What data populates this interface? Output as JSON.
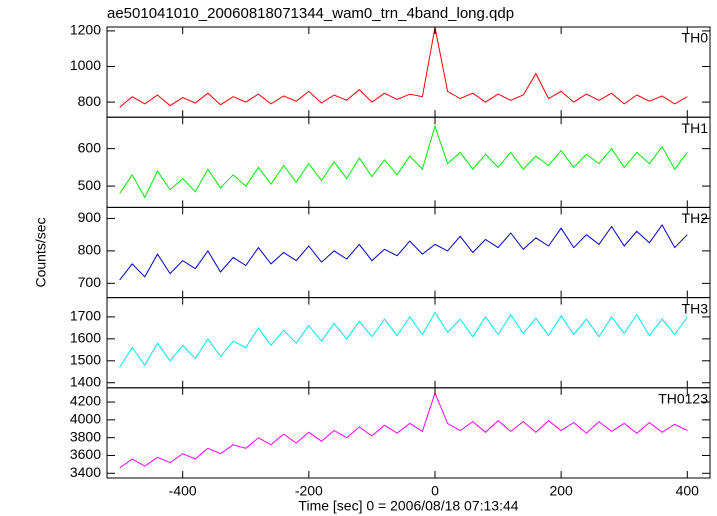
{
  "chart_data": [
    {
      "type": "line",
      "title": "ae501041010_20060818071344_wam0_trn_4band_long.qdp",
      "x": [
        -500,
        -480,
        -460,
        -440,
        -420,
        -400,
        -380,
        -360,
        -340,
        -320,
        -300,
        -280,
        -260,
        -240,
        -220,
        -200,
        -180,
        -160,
        -140,
        -120,
        -100,
        -80,
        -60,
        -40,
        -20,
        0,
        20,
        40,
        60,
        80,
        100,
        120,
        140,
        160,
        180,
        200,
        220,
        240,
        260,
        280,
        300,
        320,
        340,
        360,
        380,
        400
      ],
      "series": [
        {
          "name": "TH0",
          "color": "#ff0000",
          "values": [
            770,
            830,
            790,
            840,
            780,
            825,
            795,
            850,
            785,
            830,
            800,
            845,
            790,
            835,
            805,
            860,
            795,
            840,
            810,
            870,
            800,
            850,
            815,
            845,
            830,
            1220,
            860,
            820,
            850,
            800,
            845,
            810,
            840,
            960,
            820,
            860,
            800,
            845,
            810,
            850,
            790,
            840,
            805,
            835,
            790,
            830
          ]
        }
      ],
      "xlim": [
        -520,
        436
      ],
      "xticks": [
        -400,
        -200,
        0,
        200,
        400
      ],
      "ylim": [
        715,
        1222
      ],
      "yticks": [
        800,
        1000,
        1200
      ]
    },
    {
      "type": "line",
      "x": [
        -500,
        -480,
        -460,
        -440,
        -420,
        -400,
        -380,
        -360,
        -340,
        -320,
        -300,
        -280,
        -260,
        -240,
        -220,
        -200,
        -180,
        -160,
        -140,
        -120,
        -100,
        -80,
        -60,
        -40,
        -20,
        0,
        20,
        40,
        60,
        80,
        100,
        120,
        140,
        160,
        180,
        200,
        220,
        240,
        260,
        280,
        300,
        320,
        340,
        360,
        380,
        400
      ],
      "series": [
        {
          "name": "TH1",
          "color": "#00ee00",
          "values": [
            480,
            530,
            470,
            540,
            490,
            520,
            485,
            545,
            495,
            530,
            500,
            550,
            505,
            555,
            510,
            560,
            515,
            565,
            520,
            575,
            525,
            570,
            530,
            580,
            545,
            660,
            560,
            590,
            545,
            585,
            550,
            590,
            545,
            580,
            555,
            595,
            550,
            585,
            560,
            600,
            550,
            590,
            560,
            605,
            545,
            590
          ]
        }
      ],
      "xlim": [
        -520,
        436
      ],
      "xticks": [
        -400,
        -200,
        0,
        200,
        400
      ],
      "ylim": [
        443,
        684
      ],
      "yticks": [
        500,
        600
      ]
    },
    {
      "type": "line",
      "y_label": "Counts/sec",
      "x": [
        -500,
        -480,
        -460,
        -440,
        -420,
        -400,
        -380,
        -360,
        -340,
        -320,
        -300,
        -280,
        -260,
        -240,
        -220,
        -200,
        -180,
        -160,
        -140,
        -120,
        -100,
        -80,
        -60,
        -40,
        -20,
        0,
        20,
        40,
        60,
        80,
        100,
        120,
        140,
        160,
        180,
        200,
        220,
        240,
        260,
        280,
        300,
        320,
        340,
        360,
        380,
        400
      ],
      "series": [
        {
          "name": "TH2",
          "color": "#0000cc",
          "values": [
            710,
            760,
            720,
            790,
            730,
            770,
            745,
            800,
            735,
            780,
            755,
            810,
            760,
            795,
            770,
            815,
            765,
            800,
            775,
            820,
            770,
            805,
            785,
            830,
            790,
            820,
            800,
            845,
            795,
            835,
            810,
            855,
            805,
            840,
            815,
            870,
            810,
            850,
            820,
            875,
            815,
            860,
            825,
            880,
            810,
            850
          ]
        }
      ],
      "xlim": [
        -520,
        436
      ],
      "xticks": [
        -400,
        -200,
        0,
        200,
        400
      ],
      "ylim": [
        656,
        934
      ],
      "yticks": [
        700,
        800,
        900
      ]
    },
    {
      "type": "line",
      "x": [
        -500,
        -480,
        -460,
        -440,
        -420,
        -400,
        -380,
        -360,
        -340,
        -320,
        -300,
        -280,
        -260,
        -240,
        -220,
        -200,
        -180,
        -160,
        -140,
        -120,
        -100,
        -80,
        -60,
        -40,
        -20,
        0,
        20,
        40,
        60,
        80,
        100,
        120,
        140,
        160,
        180,
        200,
        220,
        240,
        260,
        280,
        300,
        320,
        340,
        360,
        380,
        400
      ],
      "series": [
        {
          "name": "TH3",
          "color": "#00eeee",
          "values": [
            1470,
            1560,
            1480,
            1580,
            1500,
            1570,
            1510,
            1600,
            1520,
            1590,
            1560,
            1650,
            1570,
            1640,
            1580,
            1660,
            1590,
            1670,
            1600,
            1680,
            1610,
            1690,
            1615,
            1700,
            1620,
            1720,
            1630,
            1690,
            1610,
            1700,
            1620,
            1710,
            1625,
            1695,
            1615,
            1705,
            1620,
            1690,
            1610,
            1700,
            1625,
            1710,
            1615,
            1690,
            1620,
            1700
          ]
        }
      ],
      "xlim": [
        -520,
        436
      ],
      "xticks": [
        -400,
        -200,
        0,
        200,
        400
      ],
      "ylim": [
        1377,
        1788
      ],
      "yticks": [
        1400,
        1500,
        1600,
        1700
      ]
    },
    {
      "type": "line",
      "x_label": "Time [sec] 0 = 2006/08/18 07:13:44",
      "x": [
        -500,
        -480,
        -460,
        -440,
        -420,
        -400,
        -380,
        -360,
        -340,
        -320,
        -300,
        -280,
        -260,
        -240,
        -220,
        -200,
        -180,
        -160,
        -140,
        -120,
        -100,
        -80,
        -60,
        -40,
        -20,
        0,
        20,
        40,
        60,
        80,
        100,
        120,
        140,
        160,
        180,
        200,
        220,
        240,
        260,
        280,
        300,
        320,
        340,
        360,
        380,
        400
      ],
      "series": [
        {
          "name": "TH0123",
          "color": "#ff00ff",
          "values": [
            3460,
            3560,
            3480,
            3580,
            3520,
            3620,
            3560,
            3680,
            3620,
            3720,
            3680,
            3800,
            3720,
            3840,
            3740,
            3860,
            3760,
            3880,
            3800,
            3920,
            3820,
            3940,
            3850,
            3960,
            3870,
            4300,
            3960,
            3880,
            3980,
            3860,
            3990,
            3870,
            3980,
            3860,
            3990,
            3880,
            3970,
            3850,
            3980,
            3870,
            3960,
            3850,
            3970,
            3860,
            3950,
            3880
          ]
        }
      ],
      "xlim": [
        -520,
        436
      ],
      "xticks": [
        -400,
        -200,
        0,
        200,
        400
      ],
      "ylim": [
        3347,
        4360
      ],
      "yticks": [
        3400,
        3600,
        3800,
        4000,
        4200
      ]
    }
  ]
}
